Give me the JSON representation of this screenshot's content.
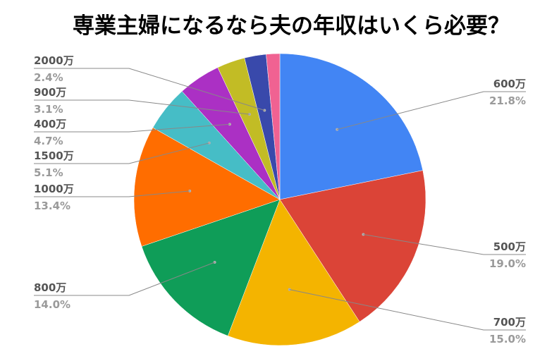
{
  "chart_data": {
    "type": "pie",
    "title": "専業主婦になるなら夫の年収はいくら必要？",
    "start_angle_deg": 0,
    "direction": "clockwise",
    "slices": [
      {
        "label": "600万",
        "value": 21.8,
        "pct_text": "21.8%",
        "color": "#4285f4",
        "side": "right"
      },
      {
        "label": "500万",
        "value": 19.0,
        "pct_text": "19.0%",
        "color": "#db4437",
        "side": "right"
      },
      {
        "label": "700万",
        "value": 15.0,
        "pct_text": "15.0%",
        "color": "#f4b400",
        "side": "right"
      },
      {
        "label": "800万",
        "value": 14.0,
        "pct_text": "14.0%",
        "color": "#0f9d58",
        "side": "left"
      },
      {
        "label": "1000万",
        "value": 13.4,
        "pct_text": "13.4%",
        "color": "#ff6d00",
        "side": "left"
      },
      {
        "label": "1500万",
        "value": 5.1,
        "pct_text": "5.1%",
        "color": "#46bdc6",
        "side": "left"
      },
      {
        "label": "400万",
        "value": 4.7,
        "pct_text": "4.7%",
        "color": "#ab30c4",
        "side": "left"
      },
      {
        "label": "900万",
        "value": 3.1,
        "pct_text": "3.1%",
        "color": "#c2bc25",
        "side": "left"
      },
      {
        "label": "2000万",
        "value": 2.4,
        "pct_text": "2.4%",
        "color": "#3949ab",
        "side": "left"
      },
      {
        "label": "",
        "value": 1.5,
        "pct_text": "",
        "color": "#f06292",
        "side": "none"
      }
    ],
    "legend": "none"
  }
}
